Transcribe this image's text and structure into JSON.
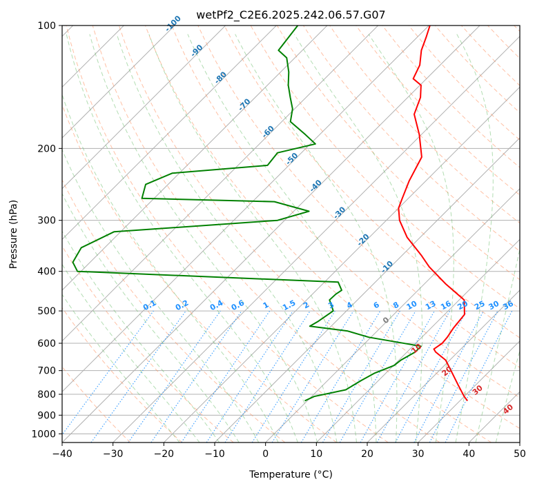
{
  "chart_data": {
    "type": "line",
    "title": "wetPf2_C2E6.2025.242.06.57.G07",
    "xlabel": "Temperature (°C)",
    "ylabel": "Pressure (hPa)",
    "xlim": [
      -40,
      50
    ],
    "ylim": [
      1050,
      100
    ],
    "y_scale": "log",
    "x_ticks": [
      -40,
      -30,
      -20,
      -10,
      0,
      10,
      20,
      30,
      40,
      50
    ],
    "x_tick_labels": [
      "−40",
      "−30",
      "−20",
      "−10",
      "0",
      "10",
      "20",
      "30",
      "40",
      "50"
    ],
    "y_ticks": [
      100,
      200,
      300,
      400,
      500,
      600,
      700,
      800,
      900,
      1000
    ],
    "y_tick_labels": [
      "100",
      "200",
      "300",
      "400",
      "500",
      "600",
      "700",
      "800",
      "900",
      "1000"
    ],
    "grid": true,
    "series": [
      {
        "color": "#ff0000",
        "points": [
          [
            31.5,
            830
          ],
          [
            30.0,
            810
          ],
          [
            26.6,
            760
          ],
          [
            22.3,
            700
          ],
          [
            19.2,
            660
          ],
          [
            15.6,
            630
          ],
          [
            14.7,
            620
          ],
          [
            15.2,
            600
          ],
          [
            15.0,
            580
          ],
          [
            14.4,
            550
          ],
          [
            13.9,
            510
          ],
          [
            11.0,
            470
          ],
          [
            4.3,
            430
          ],
          [
            -2.4,
            390
          ],
          [
            -6.3,
            365
          ],
          [
            -12.6,
            330
          ],
          [
            -17.4,
            300
          ],
          [
            -20.0,
            280
          ],
          [
            -21.2,
            265
          ],
          [
            -23.3,
            240
          ],
          [
            -25.5,
            210
          ],
          [
            -30.4,
            185
          ],
          [
            -35.4,
            165
          ],
          [
            -37.5,
            150
          ],
          [
            -39.8,
            140
          ],
          [
            -42.6,
            135
          ],
          [
            -44.0,
            125
          ],
          [
            -46.6,
            115
          ],
          [
            -48.2,
            107
          ],
          [
            -49.8,
            100
          ]
        ]
      },
      {
        "color": "#008000",
        "points": [
          [
            -0.5,
            830
          ],
          [
            0.5,
            810
          ],
          [
            5.4,
            780
          ],
          [
            6.6,
            740
          ],
          [
            7.8,
            710
          ],
          [
            10.1,
            680
          ],
          [
            10.4,
            660
          ],
          [
            11.6,
            630
          ],
          [
            11.6,
            610
          ],
          [
            -0.4,
            580
          ],
          [
            -5.8,
            560
          ],
          [
            -14.2,
            545
          ],
          [
            -13.5,
            530
          ],
          [
            -12.6,
            500
          ],
          [
            -14.0,
            485
          ],
          [
            -15.5,
            470
          ],
          [
            -15.4,
            455
          ],
          [
            -15.0,
            445
          ],
          [
            -17.3,
            425
          ],
          [
            -70.7,
            400
          ],
          [
            -73.4,
            380
          ],
          [
            -74.6,
            350
          ],
          [
            -71.3,
            320
          ],
          [
            -41.4,
            300
          ],
          [
            -37.0,
            285
          ],
          [
            -45.7,
            270
          ],
          [
            -72.4,
            265
          ],
          [
            -74.4,
            245
          ],
          [
            -71.4,
            230
          ],
          [
            -54.2,
            220
          ],
          [
            -54.7,
            205
          ],
          [
            -49.0,
            195
          ],
          [
            -52.8,
            185
          ],
          [
            -58.3,
            172
          ],
          [
            -60.4,
            160
          ],
          [
            -63.1,
            150
          ],
          [
            -65.9,
            140
          ],
          [
            -68.4,
            130
          ],
          [
            -71.6,
            120
          ],
          [
            -74.7,
            115
          ],
          [
            -75.8,
            100
          ]
        ]
      }
    ],
    "dry_adiabat_labels": [
      "-100",
      "-90",
      "-80",
      "-70",
      "-60",
      "-50",
      "-40",
      "-30",
      "-20",
      "-10"
    ],
    "mixing_ratio_labels": [
      "0.1",
      "0.2",
      "0.4",
      "0.6",
      "1",
      "1.5",
      "2",
      "3",
      "4",
      "6",
      "8",
      "10",
      "13",
      "16",
      "20",
      "25",
      "30",
      "36"
    ],
    "moist_adiabat_labels": [
      "0",
      "10",
      "20",
      "30",
      "40"
    ],
    "colors": {
      "temperature": "#ff0000",
      "dewpoint": "#008000",
      "isotherm": "#aaaaaa",
      "dry_adiabat": "#ff8c5a",
      "moist_adiabat": "#66bb66",
      "mixing_ratio": "#1e90ff",
      "dry_label": "#1f77b4",
      "moist_label": "#d62728",
      "zero_label": "#808080"
    }
  }
}
